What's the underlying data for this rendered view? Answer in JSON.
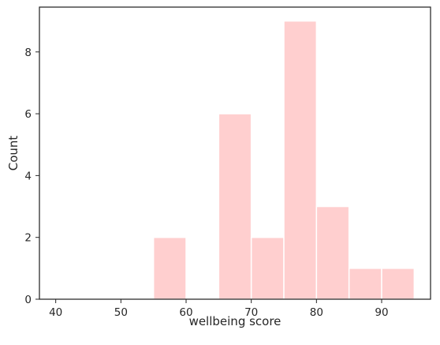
{
  "chart_data": {
    "type": "bar",
    "subtype": "histogram",
    "title": "",
    "xlabel": "wellbeing score",
    "ylabel": "Count",
    "bin_edges": [
      55,
      60,
      65,
      70,
      75,
      80,
      85,
      90,
      95
    ],
    "bins": [
      {
        "x0": 55,
        "x1": 60,
        "count": 2
      },
      {
        "x0": 60,
        "x1": 65,
        "count": 0
      },
      {
        "x0": 65,
        "x1": 70,
        "count": 6
      },
      {
        "x0": 70,
        "x1": 75,
        "count": 2
      },
      {
        "x0": 75,
        "x1": 80,
        "count": 9
      },
      {
        "x0": 80,
        "x1": 85,
        "count": 3
      },
      {
        "x0": 85,
        "x1": 90,
        "count": 1
      },
      {
        "x0": 90,
        "x1": 95,
        "count": 1
      }
    ],
    "xlim": [
      37.5,
      97.5
    ],
    "ylim": [
      0,
      9.45
    ],
    "xticks": [
      40,
      50,
      60,
      70,
      80,
      90
    ],
    "yticks": [
      0,
      2,
      4,
      6,
      8
    ],
    "grid": false,
    "bar_color": "#ffcfcf",
    "bar_edge_color": "#ffffff"
  }
}
